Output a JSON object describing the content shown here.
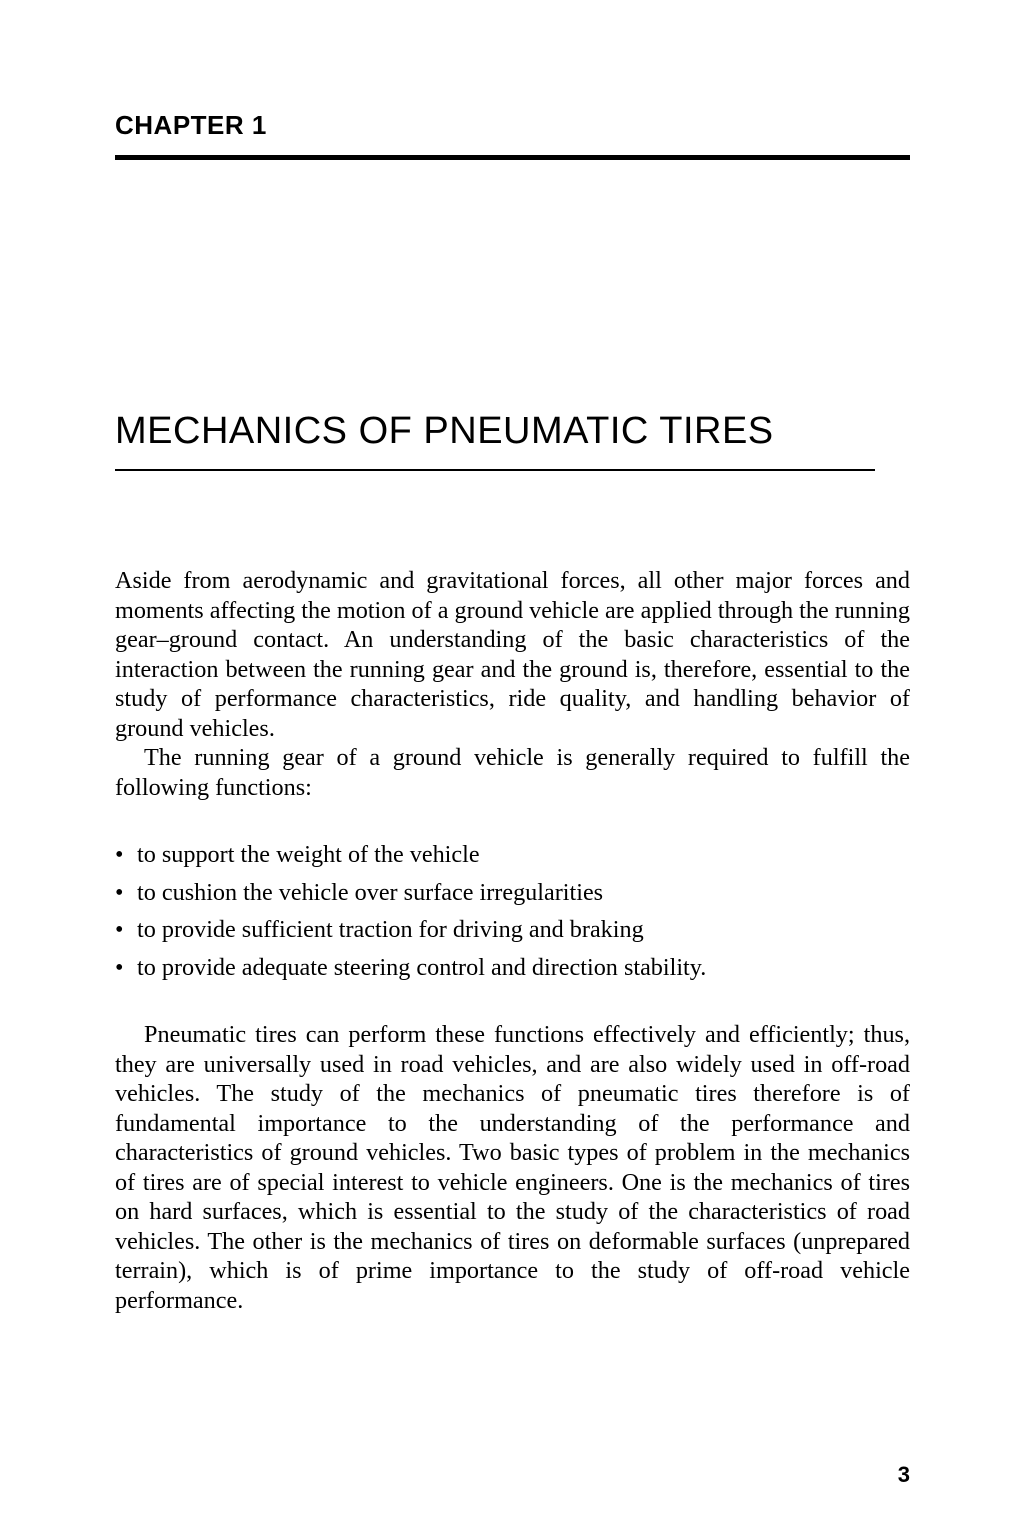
{
  "chapter": {
    "label": "CHAPTER 1",
    "title": "MECHANICS OF PNEUMATIC TIRES"
  },
  "paragraphs": {
    "p1": "Aside from aerodynamic and gravitational forces, all other major forces and moments affecting the motion of a ground vehicle are applied through the running gear–ground contact. An understanding of the basic characteristics of the interaction between the running gear and the ground is, therefore, essential to the study of performance characteristics, ride quality, and handling behavior of ground vehicles.",
    "p2": "The running gear of a ground vehicle is generally required to fulfill the following functions:",
    "p3": "Pneumatic tires can perform these functions effectively and efficiently; thus, they are universally used in road vehicles, and are also widely used in off-road vehicles. The study of the mechanics of pneumatic tires therefore is of fundamental importance to the understanding of the performance and characteristics of ground vehicles. Two basic types of problem in the mechanics of tires are of special interest to vehicle engineers. One is the mechanics of tires on hard surfaces, which is essential to the study of the characteristics of road vehicles. The other is the mechanics of tires on deformable surfaces (unprepared terrain), which is of prime importance to the study of off-road vehicle performance."
  },
  "functions": [
    "to support the weight of the vehicle",
    "to cushion the vehicle over surface irregularities",
    "to provide sufficient traction for driving and braking",
    "to provide adequate steering control and direction stability."
  ],
  "pageNumber": "3"
}
